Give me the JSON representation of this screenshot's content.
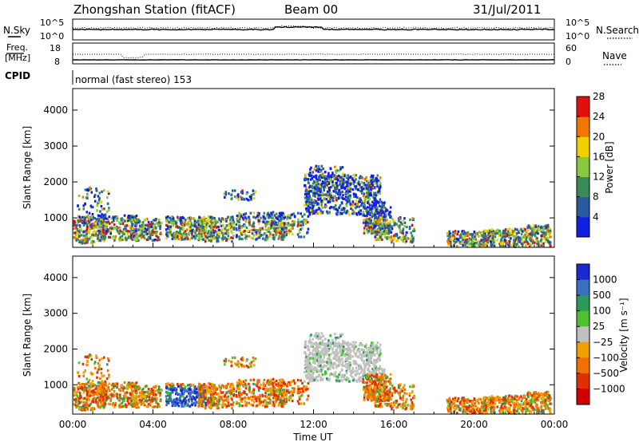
{
  "header": {
    "station_title": "Zhongshan Station (fitACF)",
    "beam": "Beam 00",
    "date": "31/Jul/2011"
  },
  "top_panel": {
    "left_label": "N.Sky",
    "right_label": "N.Search",
    "left_ticks": [
      "10^5",
      "10^0"
    ],
    "right_ticks": [
      "10^5",
      "10^0"
    ]
  },
  "freq_panel": {
    "left_label_line1": "Freq.",
    "left_label_line2": "[MHz]",
    "right_label": "Nave",
    "left_ticks": [
      "18",
      "8"
    ],
    "right_ticks": [
      "60",
      "0"
    ]
  },
  "cpid": {
    "label": "CPID",
    "mode": "normal (fast stereo) 153"
  },
  "colors": {
    "power_scale": [
      "#1020e0",
      "#2a5aa0",
      "#3a8a5a",
      "#8ac840",
      "#f0d000",
      "#f07800",
      "#e01010"
    ],
    "velocity_scale": [
      "#1a2ad0",
      "#3a70c0",
      "#2a9a5a",
      "#50c030",
      "#c0c0c0",
      "#f0a000",
      "#f07000",
      "#e03000",
      "#d00000"
    ]
  },
  "chart_data": [
    {
      "type": "heatmap",
      "name": "power",
      "ylabel": "Slant Range [km]",
      "yticks": [
        1000,
        2000,
        3000,
        4000
      ],
      "ylim": [
        180,
        4600
      ],
      "xlim": [
        0,
        24
      ],
      "colorbar": {
        "label": "Power [dB]",
        "ticks": [
          "4",
          "8",
          "12",
          "16",
          "20",
          "24",
          "28"
        ],
        "range": [
          0,
          30
        ]
      }
    },
    {
      "type": "heatmap",
      "name": "velocity",
      "ylabel": "Slant Range [km]",
      "yticks": [
        1000,
        2000,
        3000,
        4000
      ],
      "ylim": [
        180,
        4600
      ],
      "xlim": [
        0,
        24
      ],
      "xlabel": "Time UT",
      "xticks": [
        "00:00",
        "04:00",
        "08:00",
        "12:00",
        "16:00",
        "20:00",
        "00:00"
      ],
      "colorbar": {
        "label": "Velocity [m s⁻¹]",
        "ticks": [
          "1000",
          "500",
          "100",
          "25",
          "−25",
          "−100",
          "−500",
          "−1000"
        ]
      }
    }
  ]
}
